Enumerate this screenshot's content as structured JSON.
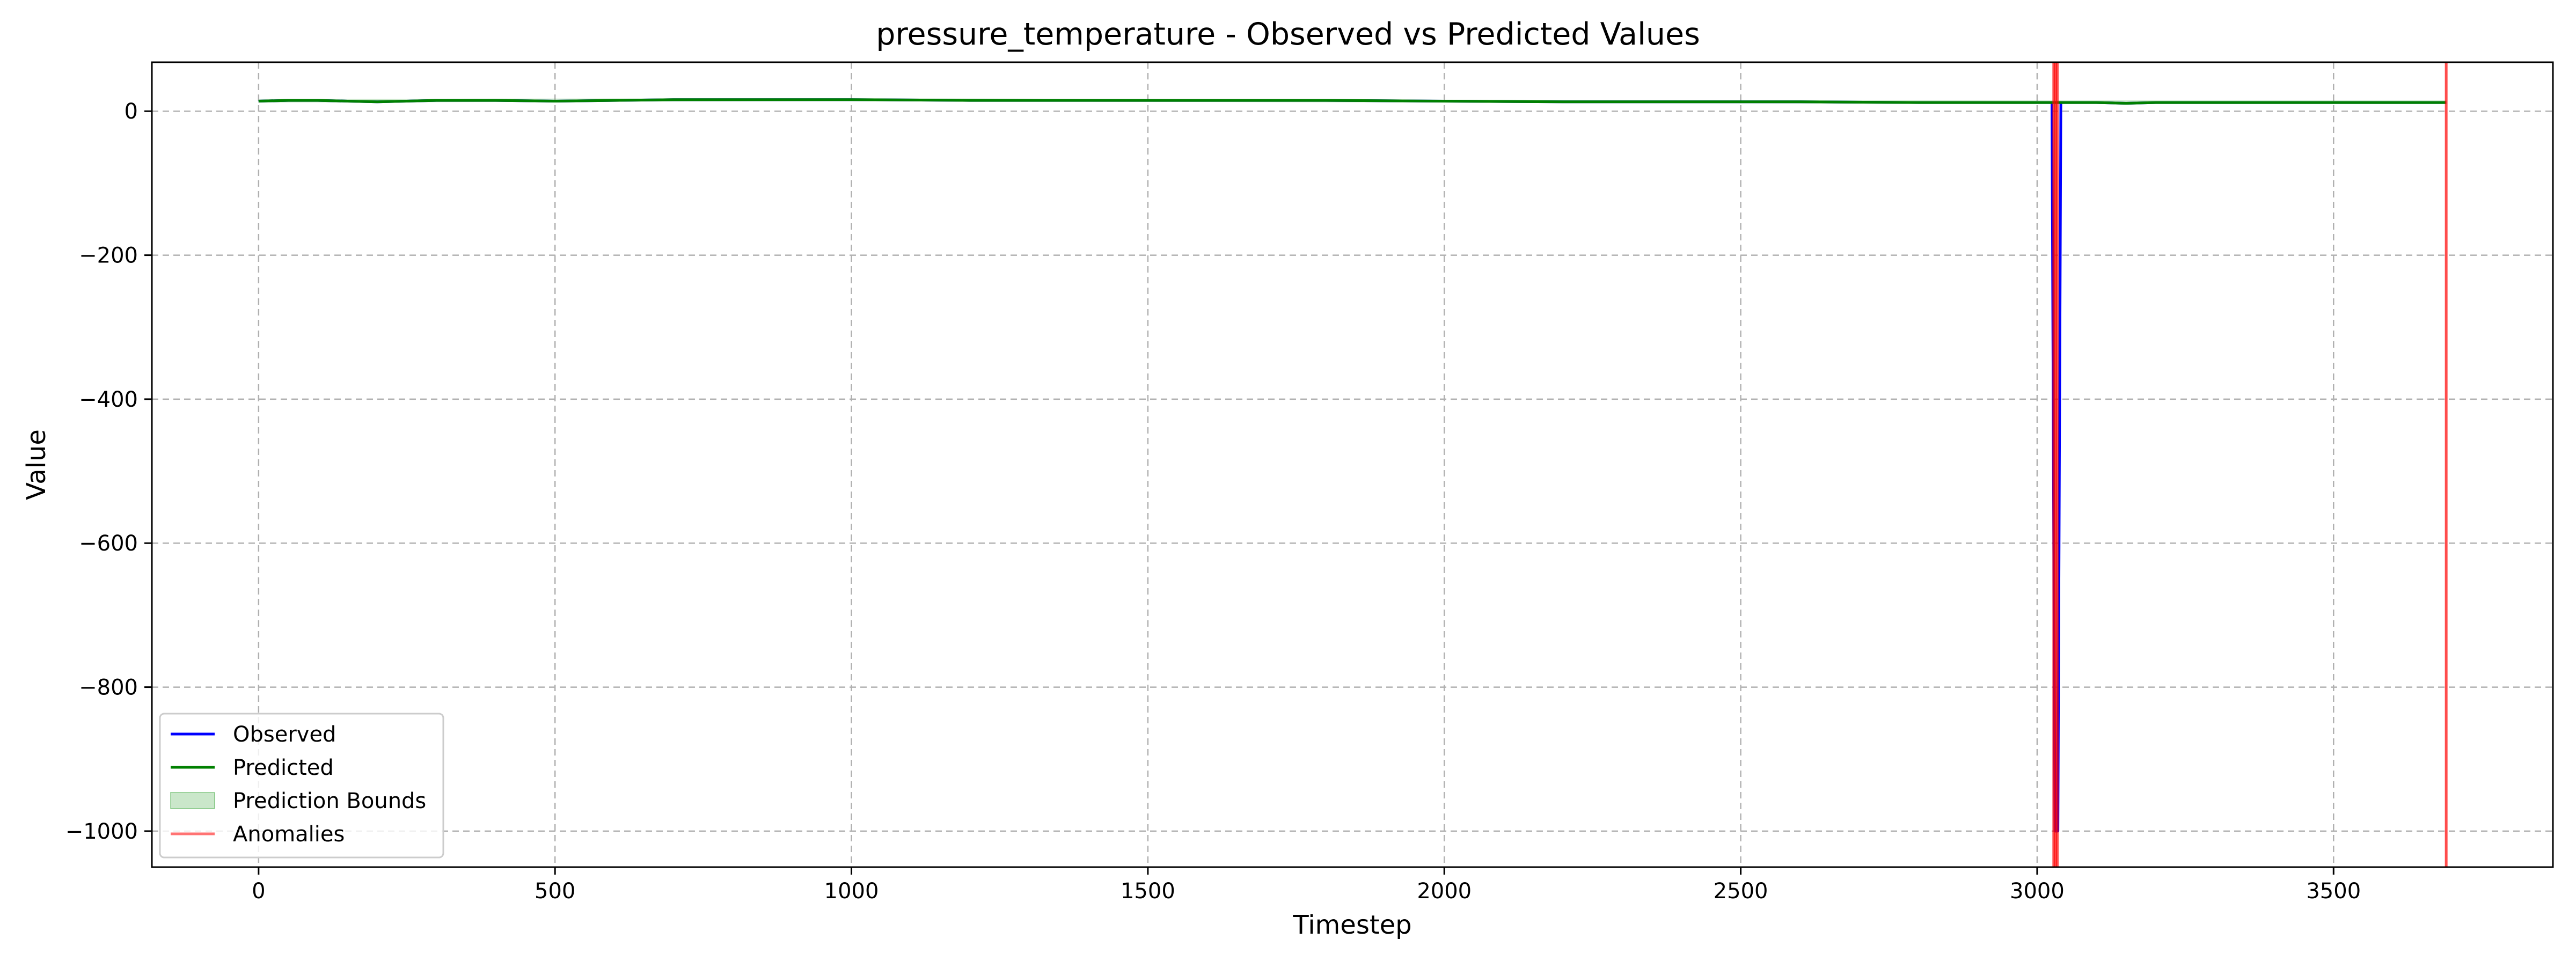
{
  "chart_data": {
    "type": "line",
    "title": "pressure_temperature - Observed vs Predicted Values",
    "xlabel": "Timestep",
    "ylabel": "Value",
    "xlim": [
      -180,
      3870
    ],
    "ylim": [
      -1050,
      68
    ],
    "xticks": [
      0,
      500,
      1000,
      1500,
      2000,
      2500,
      3000,
      3500
    ],
    "yticks": [
      0,
      -200,
      -400,
      -600,
      -800,
      -1000
    ],
    "xtick_labels": [
      "0",
      "500",
      "1000",
      "1500",
      "2000",
      "2500",
      "3000",
      "3500"
    ],
    "ytick_labels": [
      "0",
      "−200",
      "−400",
      "−600",
      "−800",
      "−1000"
    ],
    "grid": true,
    "legend_position": "lower-left",
    "series": [
      {
        "name": "Observed",
        "color": "#0000ff",
        "x": [
          0,
          50,
          100,
          150,
          200,
          300,
          400,
          500,
          600,
          700,
          800,
          900,
          1000,
          1200,
          1400,
          1600,
          1800,
          2000,
          2200,
          2400,
          2600,
          2800,
          3000,
          3025,
          3030,
          3035,
          3040,
          3100,
          3150,
          3200,
          3300,
          3400,
          3500,
          3600,
          3690
        ],
        "y": [
          14,
          15,
          15,
          14,
          13,
          15,
          15,
          14,
          15,
          16,
          16,
          16,
          16,
          15,
          15,
          15,
          15,
          14,
          13,
          13,
          13,
          12,
          12,
          12,
          -1000,
          -1000,
          12,
          12,
          11,
          12,
          12,
          12,
          12,
          12,
          12
        ]
      },
      {
        "name": "Predicted",
        "color": "#008000",
        "x": [
          0,
          50,
          100,
          150,
          200,
          300,
          400,
          500,
          600,
          700,
          800,
          900,
          1000,
          1200,
          1400,
          1600,
          1800,
          2000,
          2200,
          2400,
          2600,
          2800,
          3000,
          3025,
          3030,
          3035,
          3040,
          3100,
          3150,
          3200,
          3300,
          3400,
          3500,
          3600,
          3690
        ],
        "y": [
          14,
          15,
          15,
          14,
          13,
          15,
          15,
          14,
          15,
          16,
          16,
          16,
          16,
          15,
          15,
          15,
          15,
          14,
          13,
          13,
          13,
          12,
          12,
          12,
          12,
          12,
          12,
          12,
          11,
          12,
          12,
          12,
          12,
          12,
          12
        ]
      }
    ],
    "bounds": {
      "name": "Prediction Bounds",
      "color": "#2ca02c",
      "x": [
        0,
        1000,
        2000,
        3000,
        3025,
        3029,
        3029,
        3033,
        3033,
        3100,
        3690
      ],
      "lower": [
        12,
        14,
        12,
        10,
        10,
        10,
        -1000,
        -1000,
        10,
        10,
        10
      ],
      "upper": [
        17,
        18,
        16,
        15,
        15,
        15,
        15,
        15,
        15,
        15,
        15
      ]
    },
    "anomalies": {
      "name": "Anomalies",
      "color": "#ff0000",
      "x": [
        3028,
        3031,
        3034,
        3690
      ]
    }
  }
}
